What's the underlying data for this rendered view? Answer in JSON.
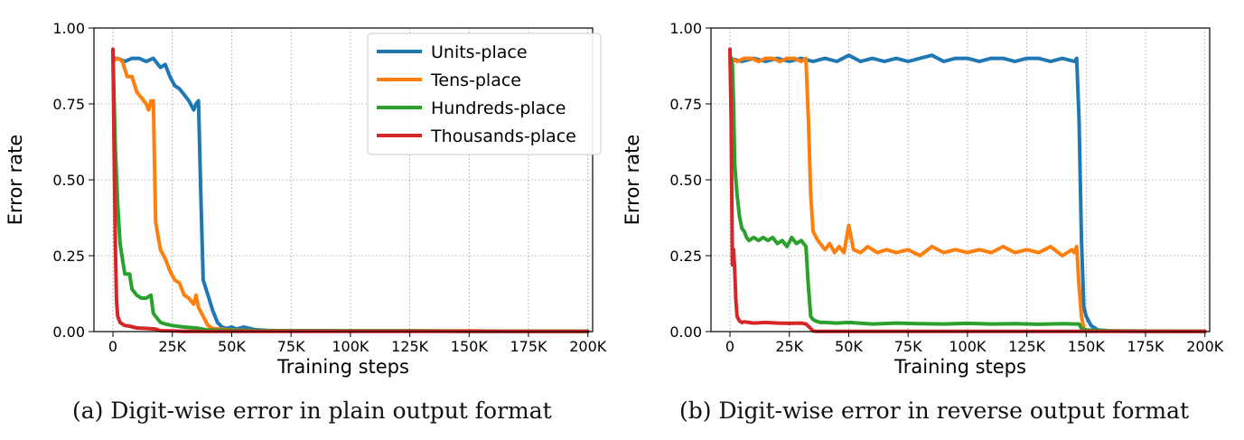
{
  "colors": {
    "units": "#1f77b4",
    "tens": "#ff7f0e",
    "hundreds": "#2ca02c",
    "thousands": "#d62728"
  },
  "chart_data": [
    {
      "type": "line",
      "caption": "(a) Digit-wise error in plain output format",
      "xlabel": "Training steps",
      "ylabel": "Error rate",
      "xlim": [
        -8000,
        202000
      ],
      "ylim": [
        0,
        1
      ],
      "xticks": [
        0,
        25000,
        50000,
        75000,
        100000,
        125000,
        150000,
        175000,
        200000
      ],
      "xtick_labels": [
        "0",
        "25K",
        "50K",
        "75K",
        "100K",
        "125K",
        "150K",
        "175K",
        "200K"
      ],
      "yticks": [
        0,
        0.25,
        0.5,
        0.75,
        1.0
      ],
      "ytick_labels": [
        "0.00",
        "0.25",
        "0.50",
        "0.75",
        "1.00"
      ],
      "grid": true,
      "legend": "top-right",
      "series": [
        {
          "name": "Units-place",
          "color_key": "units",
          "x": [
            0,
            2000,
            5000,
            8000,
            11000,
            14000,
            17000,
            20000,
            22000,
            24000,
            26000,
            28000,
            30000,
            32000,
            34000,
            35000,
            36000,
            37000,
            38000,
            40000,
            42000,
            44000,
            46000,
            48000,
            50000,
            52000,
            55000,
            60000,
            65000,
            70000,
            80000,
            100000,
            125000,
            150000,
            175000,
            200000
          ],
          "y": [
            0.9,
            0.9,
            0.89,
            0.9,
            0.9,
            0.89,
            0.9,
            0.87,
            0.88,
            0.84,
            0.81,
            0.8,
            0.78,
            0.76,
            0.73,
            0.75,
            0.76,
            0.45,
            0.17,
            0.12,
            0.07,
            0.03,
            0.015,
            0.01,
            0.015,
            0.008,
            0.015,
            0.006,
            0.004,
            0.003,
            0.003,
            0.002,
            0.002,
            0.001,
            0.001,
            0.001
          ]
        },
        {
          "name": "Tens-place",
          "color_key": "tens",
          "x": [
            0,
            2000,
            4000,
            6000,
            8000,
            10000,
            12000,
            14000,
            15000,
            16000,
            17000,
            18000,
            20000,
            22000,
            24000,
            26000,
            28000,
            30000,
            32000,
            34000,
            35000,
            36000,
            38000,
            40000,
            42000,
            45000,
            50000,
            60000,
            80000,
            100000,
            125000,
            150000,
            175000,
            200000
          ],
          "y": [
            0.89,
            0.9,
            0.89,
            0.84,
            0.84,
            0.79,
            0.77,
            0.75,
            0.73,
            0.76,
            0.76,
            0.36,
            0.27,
            0.24,
            0.2,
            0.17,
            0.16,
            0.12,
            0.11,
            0.09,
            0.12,
            0.08,
            0.05,
            0.02,
            0.01,
            0.008,
            0.005,
            0.003,
            0.002,
            0.002,
            0.002,
            0.002,
            0.001,
            0.001
          ]
        },
        {
          "name": "Hundreds-place",
          "color_key": "hundreds",
          "x": [
            0,
            1000,
            2000,
            3000,
            4000,
            5000,
            6000,
            7000,
            8000,
            10000,
            12000,
            14000,
            16000,
            17000,
            18000,
            20000,
            22000,
            25000,
            30000,
            35000,
            40000,
            50000,
            60000,
            80000,
            100000,
            125000,
            150000,
            175000,
            200000
          ],
          "y": [
            0.92,
            0.6,
            0.42,
            0.29,
            0.24,
            0.19,
            0.19,
            0.19,
            0.14,
            0.12,
            0.11,
            0.11,
            0.12,
            0.06,
            0.05,
            0.03,
            0.025,
            0.02,
            0.015,
            0.012,
            0.005,
            0.004,
            0.003,
            0.002,
            0.002,
            0.002,
            0.001,
            0.001,
            0.001
          ]
        },
        {
          "name": "Thousands-place",
          "color_key": "thousands",
          "x": [
            0,
            500,
            1000,
            1500,
            2000,
            3000,
            5000,
            7000,
            10000,
            15000,
            18000,
            20000,
            25000,
            30000,
            40000,
            60000,
            80000,
            100000,
            125000,
            150000,
            175000,
            200000
          ],
          "y": [
            0.93,
            0.6,
            0.28,
            0.1,
            0.05,
            0.03,
            0.02,
            0.018,
            0.012,
            0.01,
            0.008,
            0.003,
            0.002,
            0.001,
            0.001,
            0.001,
            0.001,
            0.001,
            0.001,
            0.001,
            0.001,
            0.001
          ]
        }
      ]
    },
    {
      "type": "line",
      "caption": "(b) Digit-wise error in reverse output format",
      "xlabel": "Training steps",
      "ylabel": "Error rate",
      "xlim": [
        -8000,
        202000
      ],
      "ylim": [
        0,
        1
      ],
      "xticks": [
        0,
        25000,
        50000,
        75000,
        100000,
        125000,
        150000,
        175000,
        200000
      ],
      "xtick_labels": [
        "0",
        "25K",
        "50K",
        "75K",
        "100K",
        "125K",
        "150K",
        "175K",
        "200K"
      ],
      "yticks": [
        0,
        0.25,
        0.5,
        0.75,
        1.0
      ],
      "ytick_labels": [
        "0.00",
        "0.25",
        "0.50",
        "0.75",
        "1.00"
      ],
      "grid": true,
      "legend": "none",
      "series": [
        {
          "name": "Units-place",
          "color_key": "units",
          "x": [
            0,
            5000,
            10000,
            15000,
            20000,
            25000,
            30000,
            35000,
            40000,
            45000,
            50000,
            55000,
            60000,
            65000,
            70000,
            75000,
            80000,
            85000,
            90000,
            95000,
            100000,
            105000,
            110000,
            115000,
            120000,
            125000,
            130000,
            135000,
            140000,
            145000,
            146000,
            147000,
            148000,
            149000,
            150000,
            152000,
            155000,
            160000,
            170000,
            180000,
            200000
          ],
          "y": [
            0.9,
            0.89,
            0.9,
            0.89,
            0.9,
            0.89,
            0.9,
            0.89,
            0.9,
            0.89,
            0.91,
            0.89,
            0.9,
            0.89,
            0.9,
            0.89,
            0.9,
            0.91,
            0.89,
            0.9,
            0.9,
            0.89,
            0.9,
            0.9,
            0.89,
            0.9,
            0.9,
            0.89,
            0.9,
            0.89,
            0.9,
            0.7,
            0.3,
            0.08,
            0.05,
            0.02,
            0.005,
            0.002,
            0.001,
            0.001,
            0.001
          ]
        },
        {
          "name": "Tens-place",
          "color_key": "tens",
          "x": [
            0,
            3000,
            6000,
            9000,
            12000,
            15000,
            18000,
            21000,
            24000,
            27000,
            30000,
            32000,
            33000,
            34000,
            35000,
            37000,
            40000,
            42000,
            44000,
            46000,
            48000,
            50000,
            52000,
            55000,
            58000,
            62000,
            66000,
            70000,
            75000,
            80000,
            85000,
            90000,
            95000,
            100000,
            105000,
            110000,
            115000,
            120000,
            125000,
            130000,
            135000,
            140000,
            144000,
            145000,
            146000,
            147000,
            148000,
            149000,
            150000,
            155000,
            160000,
            180000,
            200000
          ],
          "y": [
            0.9,
            0.89,
            0.9,
            0.9,
            0.89,
            0.9,
            0.9,
            0.89,
            0.9,
            0.9,
            0.89,
            0.9,
            0.7,
            0.45,
            0.33,
            0.3,
            0.27,
            0.29,
            0.26,
            0.28,
            0.26,
            0.35,
            0.27,
            0.26,
            0.28,
            0.26,
            0.27,
            0.26,
            0.27,
            0.25,
            0.28,
            0.26,
            0.27,
            0.26,
            0.27,
            0.26,
            0.28,
            0.26,
            0.27,
            0.26,
            0.28,
            0.25,
            0.27,
            0.26,
            0.28,
            0.15,
            0.05,
            0.01,
            0.005,
            0.003,
            0.002,
            0.001,
            0.001
          ]
        },
        {
          "name": "Hundreds-place",
          "color_key": "hundreds",
          "x": [
            0,
            500,
            1000,
            1500,
            2000,
            3000,
            4000,
            5000,
            6000,
            7000,
            8000,
            10000,
            12000,
            14000,
            16000,
            18000,
            20000,
            22000,
            24000,
            26000,
            28000,
            30000,
            32000,
            33000,
            34000,
            35000,
            36000,
            38000,
            40000,
            45000,
            50000,
            60000,
            70000,
            80000,
            90000,
            100000,
            110000,
            120000,
            130000,
            140000,
            145000,
            147000,
            148000,
            150000,
            160000,
            200000
          ],
          "y": [
            0.91,
            0.9,
            0.88,
            0.75,
            0.55,
            0.45,
            0.38,
            0.34,
            0.33,
            0.31,
            0.3,
            0.31,
            0.3,
            0.31,
            0.3,
            0.31,
            0.29,
            0.3,
            0.28,
            0.31,
            0.29,
            0.3,
            0.28,
            0.15,
            0.05,
            0.04,
            0.035,
            0.03,
            0.03,
            0.028,
            0.03,
            0.025,
            0.028,
            0.026,
            0.025,
            0.027,
            0.025,
            0.026,
            0.024,
            0.026,
            0.025,
            0.025,
            0.01,
            0.005,
            0.002,
            0.001
          ]
        },
        {
          "name": "Thousands-place",
          "color_key": "thousands",
          "x": [
            0,
            500,
            1000,
            1500,
            2000,
            2500,
            3000,
            4000,
            5000,
            6000,
            8000,
            10000,
            15000,
            20000,
            25000,
            30000,
            32000,
            34000,
            35000,
            36000,
            40000,
            60000,
            80000,
            100000,
            125000,
            150000,
            175000,
            200000
          ],
          "y": [
            0.93,
            0.7,
            0.22,
            0.27,
            0.2,
            0.1,
            0.05,
            0.035,
            0.03,
            0.032,
            0.03,
            0.028,
            0.03,
            0.028,
            0.027,
            0.028,
            0.025,
            0.01,
            0.002,
            0.001,
            0.001,
            0.001,
            0.001,
            0.001,
            0.001,
            0.001,
            0.001,
            0.001
          ]
        }
      ]
    }
  ]
}
